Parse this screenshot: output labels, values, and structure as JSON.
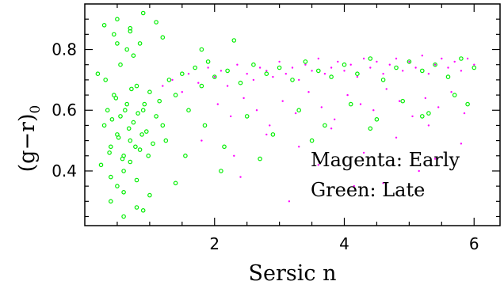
{
  "chart_data": {
    "type": "scatter",
    "title": "",
    "xlabel": "Sersic n",
    "ylabel": "(g−r)",
    "ylabel_subscript": "0",
    "xlim": [
      0,
      6.4
    ],
    "ylim": [
      0.22,
      0.95
    ],
    "x_ticks": [
      2,
      4,
      6
    ],
    "y_ticks": [
      0.4,
      0.6,
      0.8
    ],
    "x_tick_labels": [
      "2",
      "4",
      "6"
    ],
    "y_tick_labels": [
      "0.4",
      "0.6",
      "0.8"
    ],
    "grid": false,
    "annotations": [
      "Magenta: Early",
      "Green: Late"
    ],
    "series": [
      {
        "name": "Early",
        "color": "#ff00ff",
        "marker": "dot",
        "x": [
          1.2,
          1.35,
          1.5,
          1.6,
          1.75,
          1.9,
          2.0,
          2.1,
          2.2,
          2.35,
          2.5,
          2.6,
          2.7,
          2.8,
          2.9,
          3.0,
          3.1,
          3.2,
          3.3,
          3.4,
          3.5,
          3.6,
          3.7,
          3.8,
          3.9,
          4.0,
          4.1,
          4.2,
          4.3,
          4.4,
          4.5,
          4.6,
          4.7,
          4.8,
          4.9,
          5.0,
          5.1,
          5.2,
          5.3,
          5.4,
          5.5,
          5.6,
          5.7,
          5.8,
          5.9,
          6.0,
          2.05,
          2.25,
          2.45,
          2.65,
          2.85,
          3.05,
          3.25,
          3.45,
          3.65,
          3.85,
          4.05,
          4.25,
          4.45,
          4.65,
          4.85,
          5.05,
          5.25,
          5.45,
          5.65,
          5.85,
          1.8,
          2.3,
          2.8,
          3.3,
          3.8,
          4.3,
          4.8,
          5.3,
          5.8,
          2.4,
          3.6,
          4.6,
          5.4,
          3.15,
          4.15,
          5.15
        ],
        "y": [
          0.68,
          0.7,
          0.66,
          0.72,
          0.69,
          0.74,
          0.71,
          0.73,
          0.68,
          0.75,
          0.72,
          0.7,
          0.74,
          0.73,
          0.71,
          0.76,
          0.72,
          0.74,
          0.7,
          0.75,
          0.73,
          0.77,
          0.72,
          0.74,
          0.76,
          0.73,
          0.75,
          0.71,
          0.77,
          0.74,
          0.76,
          0.72,
          0.75,
          0.77,
          0.73,
          0.76,
          0.74,
          0.78,
          0.72,
          0.75,
          0.77,
          0.74,
          0.76,
          0.73,
          0.77,
          0.75,
          0.62,
          0.58,
          0.64,
          0.6,
          0.55,
          0.63,
          0.59,
          0.66,
          0.61,
          0.57,
          0.65,
          0.62,
          0.6,
          0.67,
          0.63,
          0.58,
          0.64,
          0.61,
          0.66,
          0.59,
          0.5,
          0.45,
          0.52,
          0.48,
          0.54,
          0.46,
          0.51,
          0.55,
          0.49,
          0.38,
          0.42,
          0.36,
          0.44,
          0.3,
          0.35,
          0.4
        ]
      },
      {
        "name": "Late",
        "color": "#00ee00",
        "marker": "circle",
        "x": [
          0.2,
          0.3,
          0.35,
          0.4,
          0.45,
          0.5,
          0.55,
          0.6,
          0.65,
          0.7,
          0.75,
          0.8,
          0.85,
          0.9,
          0.95,
          1.0,
          1.05,
          1.1,
          1.15,
          1.2,
          0.25,
          0.32,
          0.38,
          0.42,
          0.48,
          0.52,
          0.58,
          0.62,
          0.68,
          0.72,
          0.78,
          0.82,
          0.88,
          0.92,
          0.98,
          0.4,
          0.5,
          0.6,
          0.7,
          0.8,
          0.55,
          0.65,
          0.75,
          0.45,
          0.85,
          1.3,
          1.4,
          1.5,
          1.6,
          1.7,
          1.8,
          1.9,
          2.0,
          2.2,
          2.4,
          2.6,
          2.8,
          3.0,
          3.2,
          3.4,
          3.6,
          3.8,
          4.0,
          4.2,
          4.4,
          4.6,
          4.8,
          5.0,
          5.2,
          5.4,
          5.6,
          5.8,
          6.0,
          0.3,
          0.5,
          0.7,
          0.9,
          1.1,
          0.4,
          0.6,
          0.8,
          1.0,
          1.25,
          1.55,
          1.85,
          2.15,
          2.5,
          2.9,
          3.3,
          3.7,
          4.1,
          4.5,
          4.9,
          5.3,
          5.7,
          0.6,
          0.9,
          1.4,
          2.1,
          2.7,
          3.5,
          4.4,
          5.2,
          5.9,
          0.5,
          0.7,
          1.2,
          1.8,
          2.3
        ],
        "y": [
          0.72,
          0.55,
          0.6,
          0.48,
          0.65,
          0.52,
          0.58,
          0.45,
          0.62,
          0.5,
          0.56,
          0.68,
          0.47,
          0.6,
          0.53,
          0.66,
          0.49,
          0.58,
          0.63,
          0.55,
          0.42,
          0.7,
          0.46,
          0.57,
          0.64,
          0.51,
          0.44,
          0.6,
          0.54,
          0.67,
          0.48,
          0.59,
          0.52,
          0.62,
          0.45,
          0.38,
          0.35,
          0.4,
          0.43,
          0.37,
          0.75,
          0.8,
          0.78,
          0.85,
          0.82,
          0.7,
          0.65,
          0.72,
          0.6,
          0.74,
          0.68,
          0.76,
          0.71,
          0.73,
          0.69,
          0.75,
          0.72,
          0.74,
          0.7,
          0.76,
          0.73,
          0.71,
          0.75,
          0.72,
          0.77,
          0.7,
          0.74,
          0.76,
          0.73,
          0.75,
          0.71,
          0.77,
          0.74,
          0.88,
          0.9,
          0.86,
          0.92,
          0.89,
          0.3,
          0.33,
          0.28,
          0.32,
          0.5,
          0.45,
          0.55,
          0.48,
          0.58,
          0.52,
          0.6,
          0.55,
          0.62,
          0.57,
          0.63,
          0.59,
          0.65,
          0.25,
          0.27,
          0.36,
          0.4,
          0.44,
          0.5,
          0.54,
          0.58,
          0.62,
          0.82,
          0.87,
          0.84,
          0.8,
          0.83
        ]
      }
    ]
  }
}
